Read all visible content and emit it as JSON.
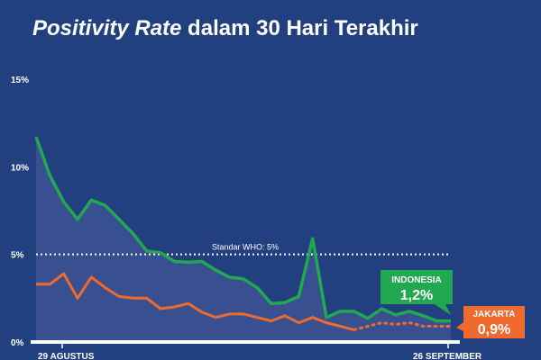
{
  "title": {
    "em": "Positivity Rate",
    "rest": " dalam 30 Hari Terakhir"
  },
  "colors": {
    "background": "#22407f",
    "indonesia": "#21a851",
    "jakarta": "#ef6a2e",
    "area": "#3c5493"
  },
  "chart_data": {
    "type": "line",
    "title": "Positivity Rate dalam 30 Hari Terakhir",
    "ylim": [
      0,
      15
    ],
    "y_ticks": [
      "15%",
      "10%",
      "5%",
      "0%"
    ],
    "y_tick_values": [
      15,
      10,
      5,
      0
    ],
    "x_start_label": "29 AGUSTUS",
    "x_end_label": "26 SEPTEMBER",
    "grid": false,
    "reference_line": {
      "value": 5,
      "label": "Standar WHO: 5%"
    },
    "series": [
      {
        "name": "INDONESIA",
        "color": "#21a851",
        "values": [
          11.7,
          9.5,
          8.0,
          7.0,
          8.1,
          7.8,
          7.0,
          6.2,
          5.2,
          5.1,
          4.6,
          4.55,
          4.6,
          4.1,
          3.7,
          3.6,
          3.1,
          2.2,
          2.25,
          2.6,
          5.9,
          1.4,
          1.75,
          1.75,
          1.35,
          1.9,
          1.55,
          1.75,
          1.5,
          1.2,
          1.2
        ],
        "label_value": "1,2%"
      },
      {
        "name": "JAKARTA",
        "color": "#ef6a2e",
        "values": [
          3.3,
          3.3,
          3.9,
          2.5,
          3.7,
          3.1,
          2.6,
          2.5,
          2.5,
          1.9,
          2.0,
          2.2,
          1.7,
          1.4,
          1.6,
          1.6,
          1.4,
          1.2,
          1.5,
          1.1,
          1.4,
          1.1,
          0.9,
          0.7,
          null,
          null,
          null,
          null,
          null,
          null,
          null
        ],
        "projected_values": [
          null,
          null,
          null,
          null,
          null,
          null,
          null,
          null,
          null,
          null,
          null,
          null,
          null,
          null,
          null,
          null,
          null,
          null,
          null,
          null,
          null,
          null,
          null,
          0.7,
          0.9,
          1.1,
          1.0,
          1.1,
          0.9,
          0.9,
          0.9
        ],
        "label_value": "0,9%"
      }
    ]
  }
}
